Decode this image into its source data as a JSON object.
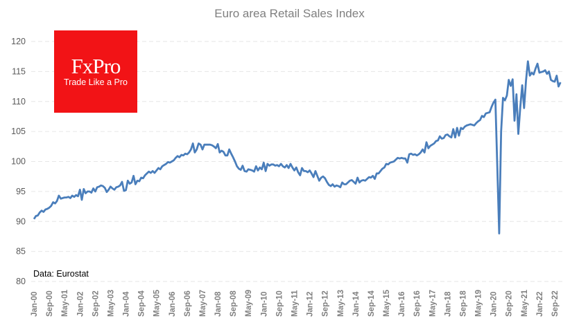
{
  "chart_data": {
    "type": "line",
    "title": "Euro area Retail Sales Index",
    "xlabel": "",
    "ylabel": "",
    "ylim": [
      80,
      120
    ],
    "yticks": [
      80,
      85,
      90,
      95,
      100,
      105,
      110,
      115,
      120
    ],
    "grid": "horizontal dashed",
    "legend": "none",
    "start": "Jan-00",
    "frequency": "monthly",
    "x_tick_labels": [
      "Jan-00",
      "Sep-00",
      "May-01",
      "Jan-02",
      "Sep-02",
      "May-03",
      "Jan-04",
      "Sep-04",
      "May-05",
      "Jan-06",
      "Sep-06",
      "May-07",
      "Jan-08",
      "Sep-08",
      "May-09",
      "Jan-10",
      "Sep-10",
      "May-11",
      "Jan-12",
      "Sep-12",
      "May-13",
      "Jan-14",
      "Sep-14",
      "May-15",
      "Jan-16",
      "Sep-16",
      "May-17",
      "Jan-18",
      "Sep-18",
      "May-19",
      "Jan-20",
      "Sep-20",
      "May-21",
      "Jan-22",
      "Sep-22"
    ],
    "line_color": "#4a7ebb",
    "series": [
      {
        "values": [
          90.4,
          90.9,
          91.0,
          91.5,
          91.8,
          91.6,
          92.0,
          92.1,
          92.3,
          92.6,
          93.2,
          93.0,
          93.4,
          94.3,
          93.8,
          93.9,
          94.0,
          94.0,
          94.1,
          93.9,
          94.3,
          94.1,
          94.4,
          94.2,
          95.3,
          93.6,
          95.4,
          94.7,
          95.0,
          95.0,
          94.8,
          95.5,
          95.0,
          95.7,
          95.8,
          96.0,
          95.9,
          95.6,
          94.9,
          95.3,
          95.8,
          95.5,
          95.3,
          95.7,
          95.8,
          96.0,
          96.6,
          95.1,
          95.2,
          96.8,
          96.3,
          96.5,
          97.6,
          96.2,
          96.8,
          96.7,
          97.3,
          97.2,
          97.7,
          98.0,
          98.3,
          98.1,
          98.4,
          98.1,
          98.5,
          98.9,
          98.7,
          99.2,
          99.4,
          99.6,
          99.9,
          99.8,
          100.0,
          100.2,
          100.6,
          100.9,
          100.7,
          101.1,
          101.0,
          101.3,
          101.2,
          101.5,
          102.0,
          103.0,
          101.5,
          102.0,
          103.0,
          102.8,
          102.0,
          102.8,
          102.8,
          102.8,
          102.8,
          102.7,
          102.5,
          102.2,
          102.9,
          101.5,
          101.8,
          101.6,
          101.0,
          101.0,
          102.0,
          101.3,
          100.7,
          100.0,
          99.2,
          98.8,
          98.6,
          99.3,
          98.4,
          98.3,
          98.7,
          98.6,
          98.5,
          98.3,
          99.2,
          98.5,
          99.0,
          98.7,
          99.8,
          98.4,
          99.6,
          99.3,
          99.5,
          99.5,
          99.3,
          99.4,
          99.2,
          99.6,
          99.2,
          99.0,
          99.4,
          98.9,
          99.6,
          99.0,
          98.5,
          99.0,
          98.2,
          97.7,
          98.9,
          98.4,
          98.4,
          98.2,
          98.5,
          98.0,
          97.4,
          98.4,
          97.6,
          96.8,
          97.3,
          97.5,
          97.2,
          96.6,
          96.1,
          95.9,
          96.2,
          95.8,
          96.0,
          95.9,
          95.7,
          96.5,
          96.2,
          96.2,
          96.5,
          96.8,
          96.9,
          96.6,
          96.3,
          97.3,
          96.5,
          96.8,
          96.9,
          96.8,
          97.1,
          97.4,
          97.3,
          97.6,
          97.1,
          98.0,
          98.0,
          98.4,
          98.8,
          99.0,
          99.6,
          99.5,
          99.8,
          99.9,
          100.0,
          100.3,
          100.6,
          100.5,
          100.6,
          100.5,
          100.5,
          99.8,
          101.2,
          101.3,
          101.1,
          101.2,
          101.0,
          101.2,
          101.5,
          102.0,
          101.5,
          103.2,
          102.2,
          102.6,
          102.8,
          103.0,
          103.4,
          103.5,
          104.2,
          103.8,
          103.9,
          104.4,
          104.5,
          104.2,
          104.0,
          105.4,
          104.0,
          105.6,
          104.3,
          105.6,
          105.4,
          105.8,
          106.0,
          106.1,
          106.2,
          106.1,
          106.0,
          106.4,
          106.7,
          106.9,
          107.6,
          107.4,
          108.0,
          108.1,
          108.2,
          109.1,
          109.8,
          110.3,
          99.0,
          88.0,
          105.0,
          110.6,
          110.2,
          111.0,
          113.6,
          112.6,
          113.7,
          106.8,
          111.2,
          104.6,
          109.0,
          112.7,
          108.9,
          113.5,
          116.7,
          114.3,
          114.8,
          114.5,
          115.5,
          116.3,
          114.8,
          114.9,
          115.0,
          115.2,
          114.6,
          115.0,
          113.6,
          113.4,
          113.3,
          114.3,
          112.5,
          113.2
        ]
      }
    ]
  },
  "logo": {
    "brand": "FxPro",
    "tagline": "Trade Like a Pro",
    "color": "#f21316"
  },
  "source_note": "Data: Eurostat"
}
